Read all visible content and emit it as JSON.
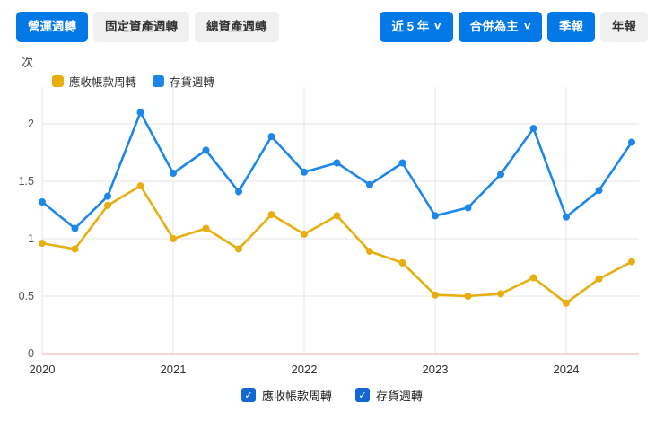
{
  "tabs": [
    {
      "label": "營運週轉",
      "active": true
    },
    {
      "label": "固定資產週轉",
      "active": false
    },
    {
      "label": "總資產週轉",
      "active": false
    }
  ],
  "controls": {
    "range_label": "近 5 年",
    "consolidated_label": "合併為主",
    "quarterly_label": "季報",
    "annual_label": "年報"
  },
  "icons": {
    "chevron_down": "∨",
    "check": "✓"
  },
  "chart_data": {
    "type": "line",
    "unit_label": "次",
    "x_frequency": "quarterly",
    "x_tick_labels": [
      "2020",
      "2021",
      "2022",
      "2023",
      "2024"
    ],
    "year_indices": [
      0,
      4,
      8,
      12,
      16
    ],
    "yticks": [
      0,
      0.5,
      1,
      1.5,
      2
    ],
    "ylim": [
      0,
      2.2
    ],
    "legend_position": "top",
    "grid": true,
    "series": [
      {
        "name": "應收帳款周轉",
        "color": "#e6af0e",
        "values": [
          0.96,
          0.91,
          1.29,
          1.46,
          1.0,
          1.09,
          0.91,
          1.21,
          1.04,
          1.2,
          0.89,
          0.79,
          0.51,
          0.5,
          0.52,
          0.66,
          0.44,
          0.65,
          0.8
        ]
      },
      {
        "name": "存貨週轉",
        "color": "#1b87e8",
        "values": [
          1.32,
          1.09,
          1.37,
          2.1,
          1.57,
          1.77,
          1.41,
          1.89,
          1.58,
          1.66,
          1.47,
          1.66,
          1.2,
          1.27,
          1.56,
          1.96,
          1.19,
          1.42,
          1.84
        ]
      }
    ]
  },
  "footer": {
    "checkboxes": [
      {
        "label": "應收帳款周轉",
        "checked": true
      },
      {
        "label": "存貨週轉",
        "checked": true
      }
    ]
  }
}
